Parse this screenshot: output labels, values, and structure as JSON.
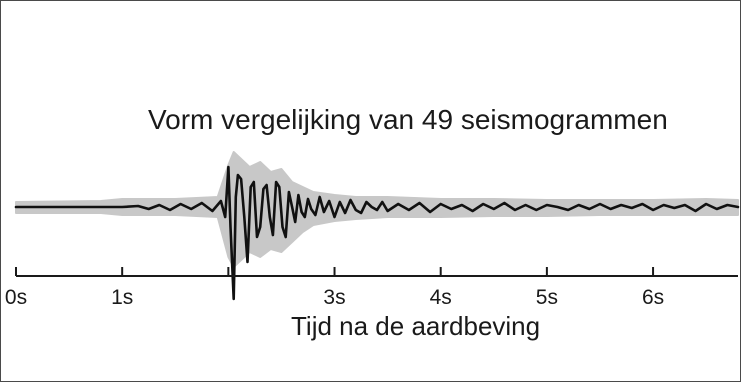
{
  "chart_data": {
    "type": "line",
    "title": "Vorm vergelijking van 49 seismogrammen",
    "xlabel": "Tijd na de aardbeving",
    "ylabel": "",
    "xlim": [
      0,
      6.8
    ],
    "ylim": [
      -1.0,
      0.6
    ],
    "x_ticks": [
      0,
      1,
      2,
      3,
      4,
      5,
      6
    ],
    "tick_labels": [
      {
        "x": 0,
        "label": "0s"
      },
      {
        "x": 1,
        "label": "1s"
      },
      {
        "x": 3,
        "label": "3s"
      },
      {
        "x": 4,
        "label": "4s"
      },
      {
        "x": 5,
        "label": "5s"
      },
      {
        "x": 6,
        "label": "6s"
      }
    ],
    "series": [
      {
        "role": "envelope",
        "color": "#c8c8c8",
        "x": [
          0,
          0.8,
          1.0,
          1.5,
          1.9,
          2.0,
          2.05,
          2.1,
          2.2,
          2.3,
          2.4,
          2.5,
          2.6,
          2.7,
          2.8,
          3.0,
          3.2,
          3.5,
          4.0,
          4.5,
          5.0,
          5.5,
          6.0,
          6.5,
          6.8
        ],
        "upper": [
          0.05,
          0.06,
          0.08,
          0.08,
          0.1,
          0.42,
          0.55,
          0.5,
          0.4,
          0.45,
          0.35,
          0.38,
          0.25,
          0.2,
          0.15,
          0.12,
          0.1,
          0.1,
          0.08,
          0.08,
          0.07,
          0.07,
          0.07,
          0.08,
          0.07
        ],
        "lower": [
          -0.06,
          -0.06,
          -0.08,
          -0.08,
          -0.1,
          -0.5,
          -0.6,
          -0.55,
          -0.45,
          -0.5,
          -0.42,
          -0.45,
          -0.35,
          -0.25,
          -0.18,
          -0.14,
          -0.12,
          -0.1,
          -0.1,
          -0.09,
          -0.09,
          -0.08,
          -0.08,
          -0.08,
          -0.08
        ]
      },
      {
        "role": "mean",
        "color": "#111111",
        "x": [
          0.0,
          0.5,
          1.0,
          1.15,
          1.25,
          1.35,
          1.45,
          1.55,
          1.65,
          1.75,
          1.85,
          1.93,
          1.97,
          2.0,
          2.02,
          2.05,
          2.07,
          2.09,
          2.12,
          2.15,
          2.18,
          2.21,
          2.24,
          2.27,
          2.3,
          2.33,
          2.36,
          2.39,
          2.42,
          2.45,
          2.48,
          2.51,
          2.54,
          2.57,
          2.6,
          2.63,
          2.66,
          2.69,
          2.72,
          2.75,
          2.78,
          2.82,
          2.86,
          2.9,
          2.95,
          3.0,
          3.05,
          3.1,
          3.15,
          3.2,
          3.25,
          3.3,
          3.35,
          3.4,
          3.45,
          3.5,
          3.6,
          3.7,
          3.8,
          3.9,
          4.0,
          4.1,
          4.2,
          4.3,
          4.4,
          4.5,
          4.6,
          4.7,
          4.8,
          4.9,
          5.0,
          5.1,
          5.2,
          5.3,
          5.4,
          5.5,
          5.6,
          5.7,
          5.8,
          5.9,
          6.0,
          6.1,
          6.2,
          6.3,
          6.4,
          6.5,
          6.6,
          6.7,
          6.8
        ],
        "y": [
          0.0,
          0.0,
          0.0,
          0.01,
          -0.02,
          0.02,
          -0.03,
          0.03,
          -0.02,
          0.04,
          -0.04,
          0.06,
          -0.1,
          0.4,
          -0.2,
          -0.92,
          0.1,
          0.32,
          0.28,
          -0.1,
          -0.55,
          0.2,
          0.25,
          -0.3,
          -0.2,
          0.18,
          0.22,
          -0.1,
          -0.28,
          0.25,
          0.2,
          -0.2,
          -0.3,
          0.15,
          0.0,
          -0.15,
          0.12,
          -0.05,
          -0.1,
          0.08,
          -0.02,
          -0.08,
          0.1,
          -0.05,
          0.06,
          -0.1,
          0.05,
          -0.06,
          0.07,
          -0.03,
          -0.06,
          0.05,
          0.0,
          -0.03,
          0.05,
          -0.04,
          0.03,
          -0.03,
          0.04,
          -0.05,
          0.03,
          -0.02,
          0.02,
          -0.04,
          0.03,
          -0.02,
          0.04,
          -0.03,
          0.02,
          -0.03,
          0.02,
          0.0,
          -0.03,
          0.02,
          -0.02,
          0.03,
          -0.02,
          0.02,
          -0.01,
          0.03,
          -0.03,
          0.02,
          -0.01,
          0.02,
          -0.04,
          0.03,
          -0.02,
          0.02,
          0.0
        ]
      }
    ],
    "grid": false,
    "legend": "none"
  }
}
